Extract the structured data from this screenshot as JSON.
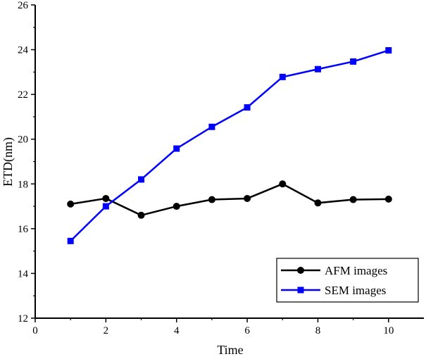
{
  "chart_data": {
    "type": "line",
    "xlabel": "Time",
    "ylabel": "ETD(nm)",
    "xlim": [
      0,
      11
    ],
    "ylim": [
      12,
      26
    ],
    "xticks": [
      "0",
      "2",
      "4",
      "6",
      "8",
      "10"
    ],
    "yticks": [
      "12",
      "14",
      "16",
      "18",
      "20",
      "22",
      "24",
      "26"
    ],
    "x": [
      1,
      2,
      3,
      4,
      5,
      6,
      7,
      8,
      9,
      10
    ],
    "legend_position": "bottom-right",
    "grid": false,
    "series": [
      {
        "name": "AFM images",
        "marker": "circle",
        "color": "#000000",
        "values": [
          17.1,
          17.35,
          16.6,
          17.0,
          17.3,
          17.35,
          18.0,
          17.15,
          17.3,
          17.32
        ]
      },
      {
        "name": "SEM images",
        "marker": "square",
        "color": "#0000ff",
        "values": [
          15.45,
          17.0,
          18.2,
          19.58,
          20.55,
          21.42,
          22.78,
          23.13,
          23.47,
          23.97
        ]
      }
    ]
  }
}
